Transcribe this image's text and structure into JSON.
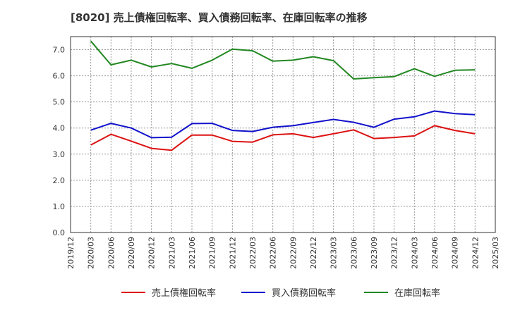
{
  "chart_data": {
    "type": "line",
    "title": "[8020]  売上債権回転率、買入債務回転率、在庫回転率の推移",
    "xlabel": "",
    "ylabel": "",
    "ylim": [
      0,
      7.5
    ],
    "yticks": [
      "0.0",
      "1.0",
      "2.0",
      "3.0",
      "4.0",
      "5.0",
      "6.0",
      "7.0"
    ],
    "x_ticks": [
      "2019/12",
      "2020/03",
      "2020/06",
      "2020/09",
      "2020/12",
      "2021/03",
      "2021/06",
      "2021/09",
      "2021/12",
      "2022/03",
      "2022/06",
      "2022/09",
      "2022/12",
      "2023/03",
      "2023/06",
      "2023/09",
      "2023/12",
      "2024/03",
      "2024/06",
      "2024/09",
      "2024/12",
      "2025/03"
    ],
    "x": [
      "2020/03",
      "2020/06",
      "2020/09",
      "2020/12",
      "2021/03",
      "2021/06",
      "2021/09",
      "2021/12",
      "2022/03",
      "2022/06",
      "2022/09",
      "2022/12",
      "2023/03",
      "2023/06",
      "2023/09",
      "2023/12",
      "2024/03",
      "2024/06",
      "2024/09",
      "2024/12"
    ],
    "grid": true,
    "legend_position": "bottom",
    "series": [
      {
        "name": "売上債権回転率",
        "color": "#dd1111",
        "values": [
          3.35,
          3.76,
          3.5,
          3.22,
          3.15,
          3.73,
          3.73,
          3.49,
          3.46,
          3.74,
          3.78,
          3.64,
          3.78,
          3.93,
          3.6,
          3.64,
          3.7,
          4.09,
          3.91,
          3.78
        ]
      },
      {
        "name": "買入債務回転率",
        "color": "#1111cc",
        "values": [
          3.92,
          4.18,
          4.0,
          3.63,
          3.65,
          4.17,
          4.18,
          3.91,
          3.87,
          4.03,
          4.09,
          4.21,
          4.33,
          4.22,
          4.03,
          4.34,
          4.43,
          4.65,
          4.55,
          4.51
        ]
      },
      {
        "name": "在庫回転率",
        "color": "#228822",
        "values": [
          7.33,
          6.42,
          6.6,
          6.34,
          6.47,
          6.29,
          6.6,
          7.02,
          6.96,
          6.56,
          6.6,
          6.73,
          6.58,
          5.88,
          5.93,
          5.97,
          6.27,
          5.98,
          6.21,
          6.23
        ]
      }
    ]
  }
}
